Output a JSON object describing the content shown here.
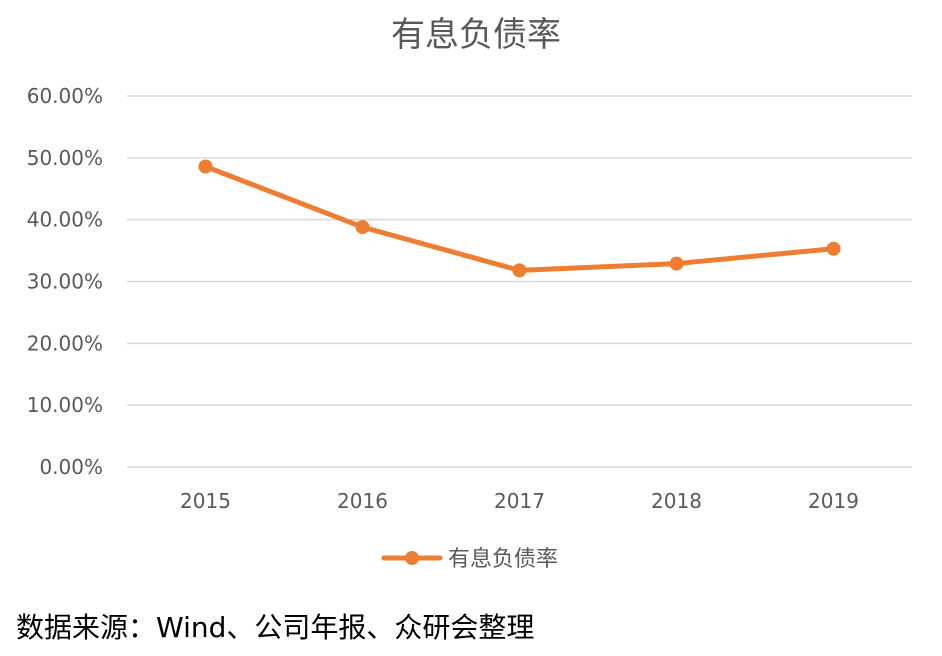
{
  "chart_data": {
    "type": "line",
    "title": "有息负债率",
    "categories": [
      "2015",
      "2016",
      "2017",
      "2018",
      "2019"
    ],
    "series": [
      {
        "name": "有息负债率",
        "values": [
          48.6,
          38.8,
          31.8,
          32.9,
          35.3
        ]
      }
    ],
    "y_tick_labels": [
      "0.00%",
      "10.00%",
      "20.00%",
      "30.00%",
      "40.00%",
      "50.00%",
      "60.00%"
    ],
    "ylim": [
      0,
      60
    ],
    "y_step": 10,
    "grid": true,
    "legend_position": "bottom",
    "colors": {
      "series": "#ED7D31",
      "grid": "#D9D9D9",
      "text": "#595959"
    }
  },
  "source_note": "数据来源：Wind、公司年报、众研会整理"
}
